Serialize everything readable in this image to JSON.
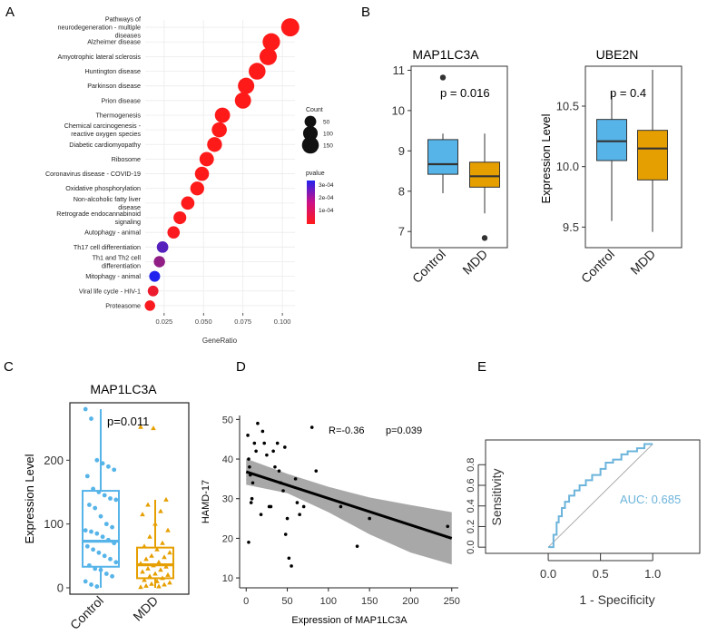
{
  "chart_data": [
    {
      "panel": "A",
      "type": "scatter",
      "subtype": "dot-enrichment",
      "xlabel": "GeneRatio",
      "xlim": [
        0.013,
        0.108
      ],
      "xticks": [
        0.025,
        0.05,
        0.075,
        0.1
      ],
      "xtick_labels": [
        "0.025",
        "0.050",
        "0.075",
        "0.100"
      ],
      "categories": [
        [
          "Pathways of",
          "neurodegeneration - multiple",
          "diseases"
        ],
        [
          "Alzheimer disease"
        ],
        [
          "Amyotrophic lateral sclerosis"
        ],
        [
          "Huntington disease"
        ],
        [
          "Parkinson disease"
        ],
        [
          "Prion disease"
        ],
        [
          "Thermogenesis"
        ],
        [
          "Chemical carcinogenesis -",
          "reactive oxygen species"
        ],
        [
          "Diabetic cardiomyopathy"
        ],
        [
          "Ribosome"
        ],
        [
          "Coronavirus disease - COVID-19"
        ],
        [
          "Oxidative phosphorylation"
        ],
        [
          "Non-alcoholic fatty liver",
          "disease"
        ],
        [
          "Retrograde endocannabinoid",
          "signaling"
        ],
        [
          "Autophagy - animal"
        ],
        [
          "Th17 cell differentiation"
        ],
        [
          "Th1 and Th2 cell",
          "differentiation"
        ],
        [
          "Mitophagy - animal"
        ],
        [
          "Viral life cycle - HIV-1"
        ],
        [
          "Proteasome"
        ]
      ],
      "gene_ratio": [
        0.105,
        0.093,
        0.091,
        0.084,
        0.077,
        0.075,
        0.062,
        0.06,
        0.057,
        0.052,
        0.049,
        0.046,
        0.04,
        0.035,
        0.031,
        0.024,
        0.022,
        0.019,
        0.018,
        0.016
      ],
      "count": [
        175,
        156,
        152,
        141,
        129,
        126,
        104,
        101,
        96,
        87,
        82,
        77,
        67,
        59,
        52,
        40,
        37,
        32,
        30,
        27
      ],
      "pvalue": [
        1e-11,
        1e-10,
        1e-10,
        1e-09,
        1e-09,
        1e-09,
        1e-08,
        1e-08,
        1e-08,
        1e-07,
        1e-07,
        1e-07,
        2e-06,
        4e-06,
        8e-06,
        0.00026,
        0.00017,
        0.00034,
        3e-05,
        1e-05
      ],
      "legend_count": {
        "title": "Count",
        "values": [
          50,
          100,
          150
        ],
        "labels": [
          "50",
          "100",
          "150"
        ]
      },
      "legend_pvalue": {
        "title": "pvalue",
        "labels": [
          "3e-04",
          "2e-04",
          "1e-04"
        ],
        "low_color": "#ff1a1a",
        "high_color": "#2222ee"
      }
    },
    {
      "panel": "B",
      "type": "box",
      "title": "MAP1LC3A",
      "ylim": [
        6.6,
        11.1
      ],
      "yticks": [
        7,
        8,
        9,
        10,
        11
      ],
      "ytick_labels": [
        "7",
        "8",
        "9",
        "10",
        "11"
      ],
      "ylabel": "",
      "categories": [
        "Control",
        "MDD"
      ],
      "boxes": [
        {
          "q1": 8.42,
          "median": 8.67,
          "q3": 9.28,
          "whisker_low": 7.95,
          "whisker_high": 9.43,
          "outliers": [
            10.82
          ]
        },
        {
          "q1": 8.1,
          "median": 8.37,
          "q3": 8.72,
          "whisker_low": 7.45,
          "whisker_high": 9.43,
          "outliers": [
            6.84
          ]
        }
      ],
      "annotation": "p = 0.016"
    },
    {
      "panel": "B",
      "type": "box",
      "title": "UBE2N",
      "ylabel": "Expression Level",
      "ylim": [
        9.33,
        10.83
      ],
      "yticks": [
        9.5,
        10.0,
        10.5
      ],
      "ytick_labels": [
        "9.5",
        "10.0",
        "10.5"
      ],
      "categories": [
        "Control",
        "MDD"
      ],
      "boxes": [
        {
          "q1": 10.05,
          "median": 10.21,
          "q3": 10.39,
          "whisker_low": 9.55,
          "whisker_high": 10.62,
          "outliers": []
        },
        {
          "q1": 9.89,
          "median": 10.15,
          "q3": 10.3,
          "whisker_low": 9.46,
          "whisker_high": 10.8,
          "outliers": []
        }
      ],
      "annotation": "p = 0.4"
    },
    {
      "panel": "C",
      "type": "box",
      "title": "MAP1LC3A",
      "ylabel": "Expression Level",
      "ylim": [
        -10,
        290
      ],
      "yticks": [
        0,
        100,
        200
      ],
      "ytick_labels": [
        "0",
        "100",
        "200"
      ],
      "categories": [
        "Control",
        "MDD"
      ],
      "boxes": [
        {
          "q1": 33,
          "median": 73,
          "q3": 152,
          "whisker_low": 0,
          "whisker_high": 280
        },
        {
          "q1": 15,
          "median": 36,
          "q3": 63,
          "whisker_low": 0,
          "whisker_high": 138
        }
      ],
      "points": [
        [
          280,
          265,
          200,
          195,
          190,
          185,
          175,
          155,
          150,
          145,
          140,
          138,
          130,
          125,
          112,
          100,
          95,
          90,
          88,
          85,
          80,
          75,
          70,
          65,
          60,
          55,
          50,
          45,
          40,
          35,
          30,
          28,
          22,
          18,
          10,
          5,
          2
        ],
        [
          252,
          250,
          138,
          130,
          120,
          115,
          100,
          90,
          80,
          70,
          65,
          60,
          55,
          50,
          48,
          45,
          40,
          38,
          35,
          33,
          30,
          28,
          25,
          22,
          20,
          18,
          15,
          12,
          10,
          8,
          6,
          5,
          3,
          2,
          1
        ]
      ],
      "annotation": "p=0.011"
    },
    {
      "panel": "D",
      "type": "scatter",
      "xlabel": "Expression of MAP1LC3A",
      "ylabel": "HAMD-17",
      "xlim": [
        -8,
        258
      ],
      "ylim": [
        7.5,
        51
      ],
      "xticks": [
        0,
        50,
        100,
        150,
        200,
        250
      ],
      "xtick_labels": [
        "0",
        "50",
        "100",
        "150",
        "200",
        "250"
      ],
      "yticks": [
        10,
        20,
        30,
        40,
        50
      ],
      "ytick_labels": [
        "10",
        "20",
        "30",
        "40",
        "50"
      ],
      "x": [
        2,
        3,
        4,
        5,
        6,
        8,
        10,
        12,
        14,
        18,
        22,
        25,
        28,
        30,
        33,
        38,
        40,
        42,
        45,
        48,
        50,
        52,
        55,
        60,
        62,
        65,
        70,
        80,
        85,
        115,
        135,
        150,
        245,
        3,
        7,
        20,
        35,
        47
      ],
      "y": [
        46,
        40,
        38,
        36,
        29,
        34,
        44,
        42,
        49,
        26,
        44,
        41,
        28,
        28,
        42,
        44,
        37,
        34,
        32,
        21,
        25,
        15,
        13,
        35,
        29,
        26,
        28,
        48,
        37,
        28,
        18,
        25,
        23,
        19,
        30,
        47,
        38,
        43
      ],
      "fit_line": {
        "x": [
          0,
          250
        ],
        "y": [
          36.8,
          20.0
        ]
      },
      "ci_band": {
        "x": [
          0,
          50,
          100,
          150,
          200,
          250
        ],
        "upper": [
          40.1,
          36.3,
          33.0,
          30.3,
          28.4,
          26.6
        ],
        "lower": [
          33.5,
          31.4,
          26.6,
          21.0,
          16.4,
          13.4
        ]
      },
      "annotations": [
        "R=-0.36",
        "p=0.039"
      ]
    },
    {
      "panel": "E",
      "type": "line",
      "subtype": "roc",
      "xlabel": "1 - Specificity",
      "ylabel": "Sensitivity",
      "xlim": [
        -0.6,
        1.45
      ],
      "ylim": [
        -0.06,
        1.04
      ],
      "xticks": [
        0.0,
        0.5,
        1.0
      ],
      "xtick_labels": [
        "0.0",
        "0.5",
        "1.0"
      ],
      "yticks": [
        0.0,
        0.2,
        0.4,
        0.6,
        0.8
      ],
      "ytick_labels": [
        "0.0",
        "0.2",
        "0.4",
        "0.6",
        "0.8"
      ],
      "roc_x": [
        0,
        0.05,
        0.05,
        0.08,
        0.08,
        0.1,
        0.1,
        0.13,
        0.13,
        0.16,
        0.16,
        0.2,
        0.2,
        0.25,
        0.25,
        0.3,
        0.3,
        0.36,
        0.36,
        0.42,
        0.42,
        0.5,
        0.5,
        0.55,
        0.55,
        0.62,
        0.62,
        0.7,
        0.7,
        0.76,
        0.76,
        0.85,
        0.85,
        0.92,
        0.92,
        1.0
      ],
      "roc_y": [
        0,
        0,
        0.12,
        0.12,
        0.24,
        0.24,
        0.3,
        0.3,
        0.38,
        0.38,
        0.44,
        0.44,
        0.5,
        0.5,
        0.55,
        0.55,
        0.6,
        0.6,
        0.65,
        0.65,
        0.7,
        0.7,
        0.76,
        0.76,
        0.82,
        0.82,
        0.85,
        0.85,
        0.9,
        0.9,
        0.93,
        0.93,
        0.96,
        0.96,
        1.0,
        1.0
      ],
      "annotation": "AUC: 0.685"
    }
  ],
  "panels": {
    "a": "A",
    "b": "B",
    "c": "C",
    "d": "D",
    "e": "E"
  },
  "colors": {
    "control": "#56b4e9",
    "mdd": "#e69f00",
    "grid": "#ebebeb",
    "roc": "#6cb4db",
    "band": "#999999"
  }
}
